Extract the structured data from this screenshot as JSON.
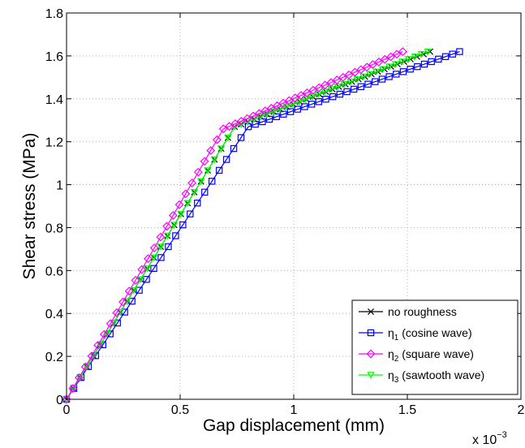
{
  "chart_data": {
    "type": "line",
    "title": "",
    "xlabel": "Gap displacement (mm)",
    "ylabel": "Shear stress (MPa)",
    "xlim": [
      0,
      2
    ],
    "ylim": [
      0,
      1.8
    ],
    "x_exponent_label": "x 10",
    "x_exponent": "−3",
    "x_ticks": [
      0,
      0.5,
      1,
      1.5,
      2
    ],
    "x_tick_labels": [
      "0",
      "0.5",
      "1",
      "1.5",
      "2"
    ],
    "y_ticks": [
      0,
      0.2,
      0.4,
      0.6,
      0.8,
      1,
      1.2,
      1.4,
      1.6,
      1.8
    ],
    "y_tick_labels": [
      "0",
      "0.2",
      "0.4",
      "0.6",
      "0.8",
      "1",
      "1.2",
      "1.4",
      "1.6",
      "1.8"
    ],
    "grid": true,
    "legend_position": "bottom-right",
    "series": [
      {
        "name": "no roughness",
        "name_main": "no roughness",
        "name_sub": "",
        "name_rest": "",
        "color": "#000000",
        "marker": "x",
        "kink": [
          0.74,
          1.27
        ],
        "end": [
          1.6,
          1.62
        ]
      },
      {
        "name": "η1 (cosine wave)",
        "name_main": "η",
        "name_sub": "1",
        "name_rest": " (cosine wave)",
        "color": "#0000ff",
        "marker": "square",
        "kink": [
          0.8,
          1.27
        ],
        "end": [
          1.73,
          1.62
        ]
      },
      {
        "name": "η2 (square wave)",
        "name_main": "η",
        "name_sub": "2",
        "name_rest": " (square wave)",
        "color": "#ff00ff",
        "marker": "diamond",
        "kink": [
          0.69,
          1.26
        ],
        "end": [
          1.48,
          1.62
        ]
      },
      {
        "name": "η3 (sawtooth wave)",
        "name_main": "η",
        "name_sub": "3",
        "name_rest": " (sawtooth wave)",
        "color": "#00ff00",
        "marker": "triangle-down",
        "kink": [
          0.74,
          1.27
        ],
        "end": [
          1.59,
          1.62
        ]
      }
    ]
  }
}
